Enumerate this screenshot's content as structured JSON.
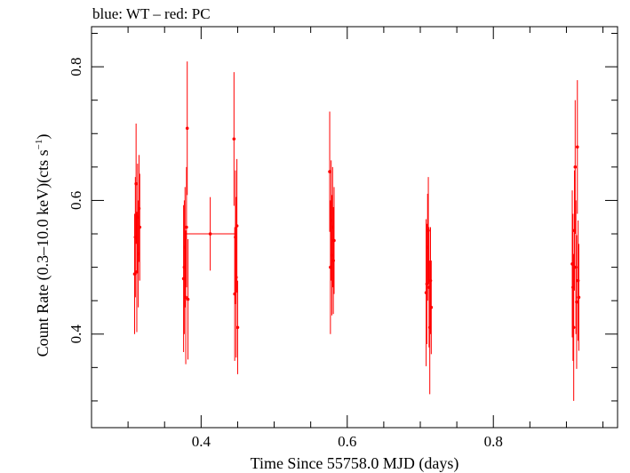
{
  "chart_data": {
    "type": "scatter",
    "title": "blue: WT – red: PC",
    "xlabel": "Time Since 55758.0 MJD (days)",
    "ylabel_main": "Count Rate (0.3–10.0 keV)(cts s",
    "ylabel_sup": "−1",
    "ylabel_end": ")",
    "xlim": [
      0.25,
      0.97
    ],
    "ylim": [
      0.26,
      0.86
    ],
    "xticks": [
      0.4,
      0.6,
      0.8
    ],
    "xtick_labels": [
      "0.4",
      "0.6",
      "0.8"
    ],
    "yticks": [
      0.4,
      0.6,
      0.8
    ],
    "ytick_labels": [
      "0.4",
      "0.6",
      "0.8"
    ],
    "series": [
      {
        "name": "PC",
        "color": "#ff0000",
        "points": [
          {
            "x": 0.309,
            "y": 0.49,
            "yerr": 0.09
          },
          {
            "x": 0.31,
            "y": 0.545,
            "yerr": 0.09
          },
          {
            "x": 0.311,
            "y": 0.625,
            "yerr": 0.09
          },
          {
            "x": 0.312,
            "y": 0.493,
            "yerr": 0.09
          },
          {
            "x": 0.313,
            "y": 0.575,
            "yerr": 0.08
          },
          {
            "x": 0.314,
            "y": 0.52,
            "yerr": 0.08
          },
          {
            "x": 0.315,
            "y": 0.588,
            "yerr": 0.08
          },
          {
            "x": 0.316,
            "y": 0.56,
            "yerr": 0.08
          },
          {
            "x": 0.376,
            "y": 0.483,
            "yerr": 0.11
          },
          {
            "x": 0.377,
            "y": 0.5,
            "yerr": 0.1
          },
          {
            "x": 0.378,
            "y": 0.53,
            "yerr": 0.09
          },
          {
            "x": 0.379,
            "y": 0.455,
            "yerr": 0.1
          },
          {
            "x": 0.38,
            "y": 0.56,
            "yerr": 0.09
          },
          {
            "x": 0.381,
            "y": 0.708,
            "yerr": 0.1
          },
          {
            "x": 0.382,
            "y": 0.452,
            "yerr": 0.09
          },
          {
            "x": 0.4125,
            "y": 0.55,
            "yerr": 0.055,
            "xerr": 0.0345
          },
          {
            "x": 0.445,
            "y": 0.692,
            "yerr": 0.1
          },
          {
            "x": 0.446,
            "y": 0.46,
            "yerr": 0.1
          },
          {
            "x": 0.447,
            "y": 0.545,
            "yerr": 0.1
          },
          {
            "x": 0.448,
            "y": 0.485,
            "yerr": 0.12
          },
          {
            "x": 0.449,
            "y": 0.562,
            "yerr": 0.1
          },
          {
            "x": 0.45,
            "y": 0.41,
            "yerr": 0.07
          },
          {
            "x": 0.576,
            "y": 0.643,
            "yerr": 0.09
          },
          {
            "x": 0.577,
            "y": 0.5,
            "yerr": 0.1
          },
          {
            "x": 0.578,
            "y": 0.57,
            "yerr": 0.09
          },
          {
            "x": 0.579,
            "y": 0.518,
            "yerr": 0.09
          },
          {
            "x": 0.58,
            "y": 0.56,
            "yerr": 0.09
          },
          {
            "x": 0.581,
            "y": 0.51,
            "yerr": 0.08
          },
          {
            "x": 0.582,
            "y": 0.54,
            "yerr": 0.08
          },
          {
            "x": 0.708,
            "y": 0.462,
            "yerr": 0.11
          },
          {
            "x": 0.709,
            "y": 0.475,
            "yerr": 0.09
          },
          {
            "x": 0.71,
            "y": 0.53,
            "yerr": 0.08
          },
          {
            "x": 0.711,
            "y": 0.555,
            "yerr": 0.08
          },
          {
            "x": 0.712,
            "y": 0.47,
            "yerr": 0.09
          },
          {
            "x": 0.713,
            "y": 0.41,
            "yerr": 0.1
          },
          {
            "x": 0.714,
            "y": 0.48,
            "yerr": 0.08
          },
          {
            "x": 0.715,
            "y": 0.44,
            "yerr": 0.07
          },
          {
            "x": 0.908,
            "y": 0.505,
            "yerr": 0.11
          },
          {
            "x": 0.909,
            "y": 0.47,
            "yerr": 0.11
          },
          {
            "x": 0.91,
            "y": 0.41,
            "yerr": 0.11
          },
          {
            "x": 0.911,
            "y": 0.555,
            "yerr": 0.09
          },
          {
            "x": 0.912,
            "y": 0.65,
            "yerr": 0.1
          },
          {
            "x": 0.913,
            "y": 0.5,
            "yerr": 0.1
          },
          {
            "x": 0.914,
            "y": 0.448,
            "yerr": 0.1
          },
          {
            "x": 0.915,
            "y": 0.68,
            "yerr": 0.1
          },
          {
            "x": 0.916,
            "y": 0.48,
            "yerr": 0.09
          },
          {
            "x": 0.917,
            "y": 0.455,
            "yerr": 0.08
          }
        ]
      }
    ]
  }
}
